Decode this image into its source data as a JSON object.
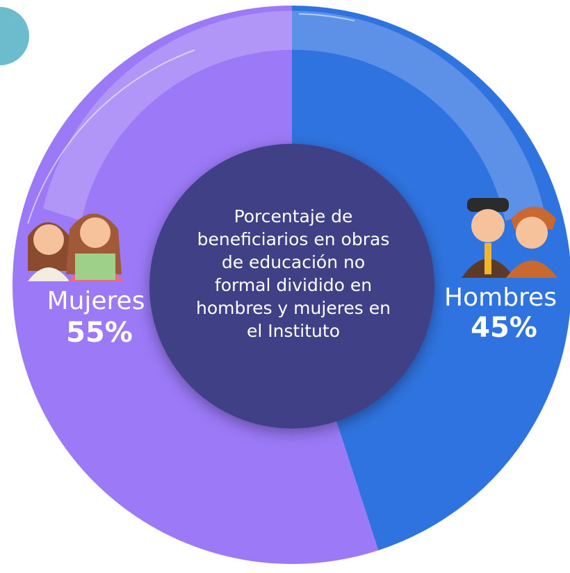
{
  "chart_data": {
    "type": "pie",
    "title": "Porcentaje de beneficiarios en obras de educación no formal dividido en hombres y mujeres en el Instituto",
    "categories": [
      "Hombres",
      "Mujeres"
    ],
    "values": [
      45,
      55
    ],
    "value_labels": [
      "45%",
      "55%"
    ],
    "colors": [
      "#2f73e0",
      "#9b79f7"
    ]
  }
}
